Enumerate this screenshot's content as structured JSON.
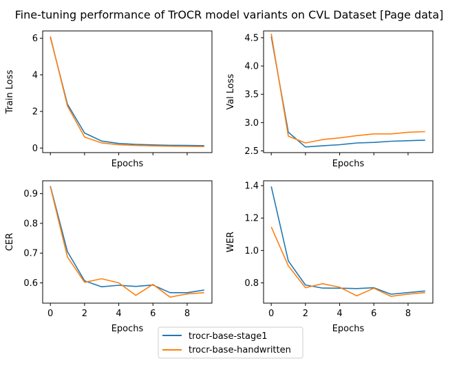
{
  "figure": {
    "title": "Fine-tuning performance of TrOCR model variants on CVL Dataset [Page data]",
    "legend": {
      "placement": "bottom-center",
      "entries": [
        "trocr-base-stage1",
        "trocr-base-handwritten"
      ]
    }
  },
  "series_colors": {
    "trocr-base-stage1": "#1f77b4",
    "trocr-base-handwritten": "#ff7f0e"
  },
  "chart_data": [
    {
      "type": "line",
      "xlabel": "Epochs",
      "ylabel": "Train Loss",
      "xlim": [
        -0.45,
        9.45
      ],
      "ylim": [
        -0.25,
        6.4
      ],
      "xticks": [
        0,
        2,
        4,
        6,
        8
      ],
      "show_xtick_labels": false,
      "yticks": [
        0,
        2,
        4,
        6
      ],
      "ytick_labels": [
        "0",
        "2",
        "4",
        "6"
      ],
      "x": [
        0,
        1,
        2,
        3,
        4,
        5,
        6,
        7,
        8,
        9
      ],
      "series": [
        {
          "name": "trocr-base-stage1",
          "values": [
            6.05,
            2.4,
            0.82,
            0.38,
            0.25,
            0.2,
            0.17,
            0.15,
            0.14,
            0.13
          ]
        },
        {
          "name": "trocr-base-handwritten",
          "values": [
            6.1,
            2.3,
            0.6,
            0.28,
            0.18,
            0.14,
            0.12,
            0.1,
            0.09,
            0.08
          ]
        }
      ],
      "grid": false
    },
    {
      "type": "line",
      "xlabel": "Epochs",
      "ylabel": "Val Loss",
      "xlim": [
        -0.45,
        9.45
      ],
      "ylim": [
        2.47,
        4.62
      ],
      "xticks": [
        0,
        2,
        4,
        6,
        8
      ],
      "show_xtick_labels": false,
      "yticks": [
        2.5,
        3.0,
        3.5,
        4.0,
        4.5
      ],
      "ytick_labels": [
        "2.5",
        "3.0",
        "3.5",
        "4.0",
        "4.5"
      ],
      "x": [
        0,
        1,
        2,
        3,
        4,
        5,
        6,
        7,
        8,
        9
      ],
      "series": [
        {
          "name": "trocr-base-stage1",
          "values": [
            4.52,
            2.83,
            2.57,
            2.59,
            2.61,
            2.64,
            2.65,
            2.67,
            2.68,
            2.69
          ]
        },
        {
          "name": "trocr-base-handwritten",
          "values": [
            4.57,
            2.76,
            2.64,
            2.7,
            2.73,
            2.77,
            2.8,
            2.8,
            2.83,
            2.84
          ]
        }
      ],
      "grid": false
    },
    {
      "type": "line",
      "xlabel": "Epochs",
      "ylabel": "CER",
      "xlim": [
        -0.45,
        9.45
      ],
      "ylim": [
        0.532,
        0.943
      ],
      "xticks": [
        0,
        2,
        4,
        6,
        8
      ],
      "show_xtick_labels": true,
      "xtick_labels": [
        "0",
        "2",
        "4",
        "6",
        "8"
      ],
      "yticks": [
        0.6,
        0.7,
        0.8,
        0.9
      ],
      "ytick_labels": [
        "0.6",
        "0.7",
        "0.8",
        "0.9"
      ],
      "x": [
        0,
        1,
        2,
        3,
        4,
        5,
        6,
        7,
        8,
        9
      ],
      "series": [
        {
          "name": "trocr-base-stage1",
          "values": [
            0.925,
            0.705,
            0.607,
            0.587,
            0.592,
            0.588,
            0.593,
            0.567,
            0.567,
            0.576
          ]
        },
        {
          "name": "trocr-base-handwritten",
          "values": [
            0.923,
            0.687,
            0.602,
            0.614,
            0.6,
            0.558,
            0.595,
            0.552,
            0.563,
            0.567
          ]
        }
      ],
      "grid": false
    },
    {
      "type": "line",
      "xlabel": "Epochs",
      "ylabel": "WER",
      "xlim": [
        -0.45,
        9.45
      ],
      "ylim": [
        0.675,
        1.43
      ],
      "xticks": [
        0,
        2,
        4,
        6,
        8
      ],
      "show_xtick_labels": true,
      "xtick_labels": [
        "0",
        "2",
        "4",
        "6",
        "8"
      ],
      "yticks": [
        0.8,
        1.0,
        1.2,
        1.4
      ],
      "ytick_labels": [
        "0.8",
        "1.0",
        "1.2",
        "1.4"
      ],
      "x": [
        0,
        1,
        2,
        3,
        4,
        5,
        6,
        7,
        8,
        9
      ],
      "series": [
        {
          "name": "trocr-base-stage1",
          "values": [
            1.395,
            0.935,
            0.787,
            0.768,
            0.767,
            0.765,
            0.77,
            0.73,
            0.74,
            0.75
          ]
        },
        {
          "name": "trocr-base-handwritten",
          "values": [
            1.145,
            0.905,
            0.77,
            0.795,
            0.773,
            0.72,
            0.767,
            0.717,
            0.73,
            0.74
          ]
        }
      ],
      "grid": false
    }
  ]
}
